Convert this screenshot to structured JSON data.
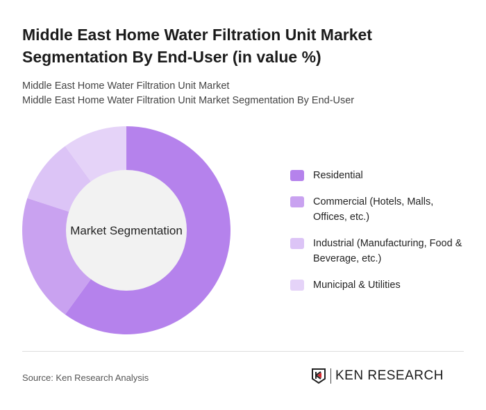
{
  "title": "Middle East Home Water Filtration Unit Market Segmentation By End-User (in value %)",
  "subtitle_lines": [
    "Middle East Home Water Filtration Unit Market",
    "Middle East Home Water Filtration Unit Market Segmentation By End-User"
  ],
  "chart_data": {
    "type": "pie",
    "donut": true,
    "center_label": "Market Segmentation",
    "categories": [
      "Residential",
      "Commercial (Hotels, Malls, Offices, etc.)",
      "Industrial (Manufacturing, Food & Beverage, etc.)",
      "Municipal & Utilities"
    ],
    "values": [
      60,
      20,
      10,
      10
    ],
    "colors": [
      "#b582ec",
      "#c9a2f0",
      "#dcc4f6",
      "#e5d3f8"
    ],
    "legend_position": "right"
  },
  "source": "Source: Ken Research Analysis",
  "logo": "KEN RESEARCH"
}
